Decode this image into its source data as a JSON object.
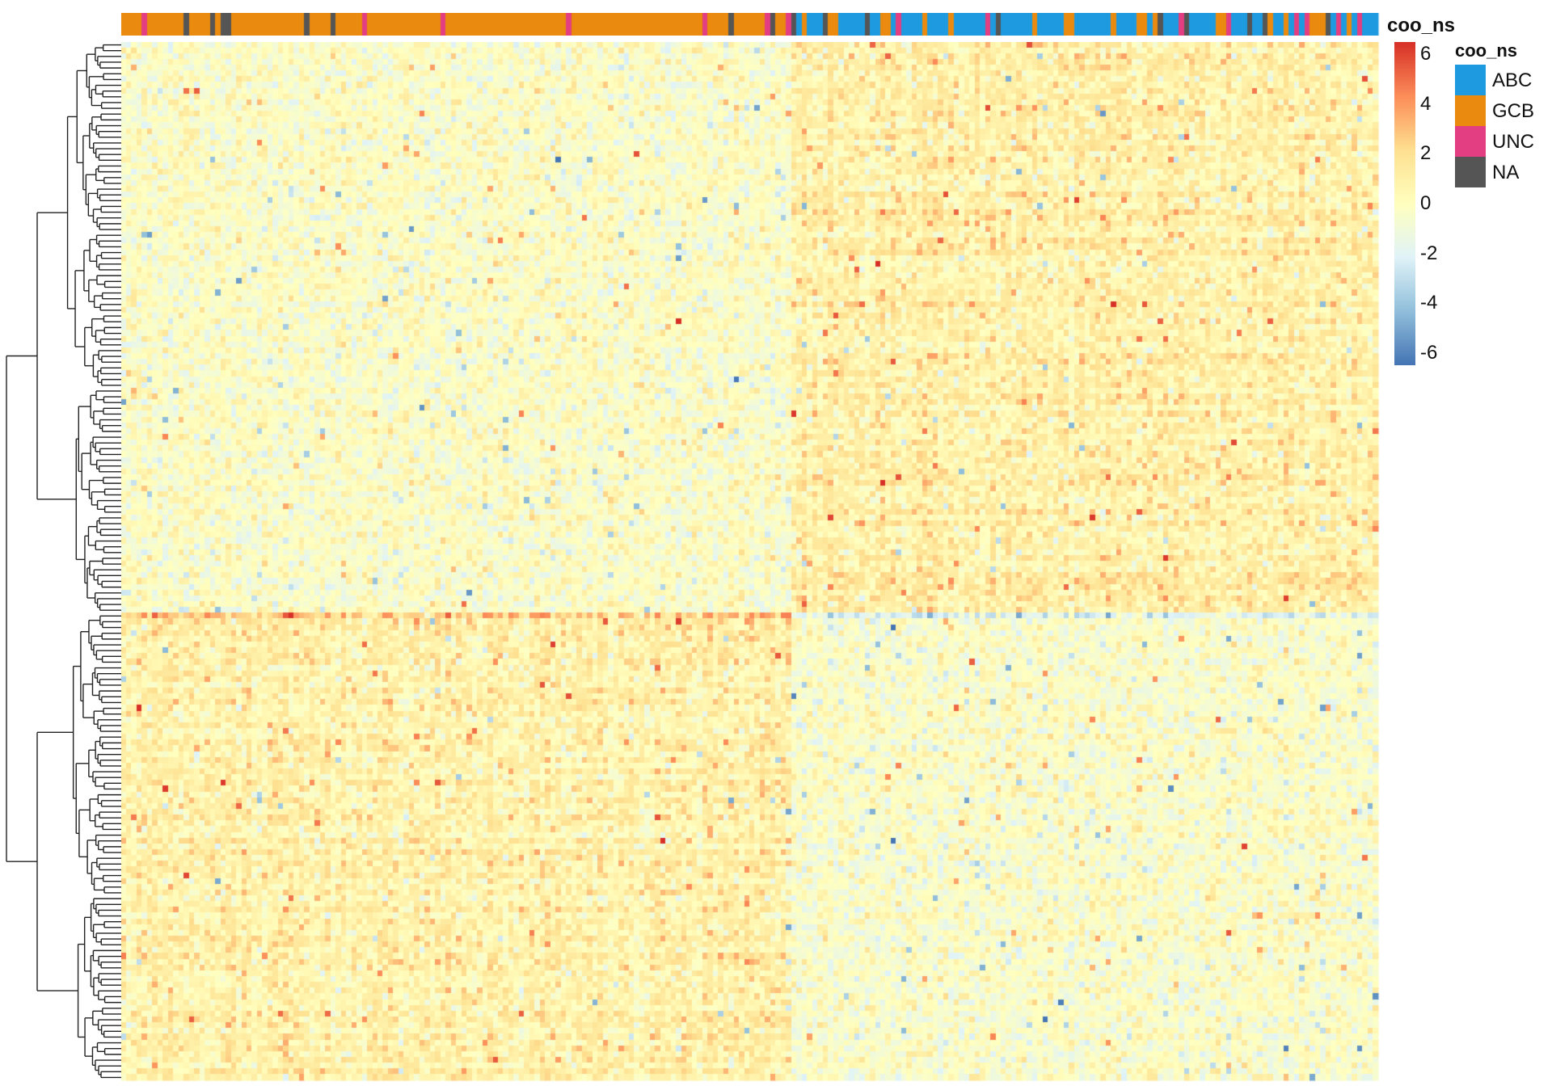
{
  "chart_data": {
    "type": "heatmap",
    "annotation": {
      "name": "coo_ns",
      "title": "coo_ns",
      "levels": [
        {
          "label": "ABC",
          "color": "#1E9BE0"
        },
        {
          "label": "GCB",
          "color": "#EA8A0E"
        },
        {
          "label": "UNC",
          "color": "#E23E81"
        },
        {
          "label": "NA",
          "color": "#555555"
        }
      ]
    },
    "color_scale": {
      "min": -6.5,
      "max": 6.5,
      "ticks": [
        "6",
        "4",
        "2",
        "0",
        "-2",
        "-4",
        "-6"
      ],
      "tick_values": [
        6,
        4,
        2,
        0,
        -2,
        -4,
        -6
      ],
      "colors": [
        "#4575B4",
        "#91BFDB",
        "#E0F3F8",
        "#FFFFBF",
        "#FEE090",
        "#FC8D59",
        "#D73027"
      ]
    },
    "row_dendrogram": true,
    "column_groups": [
      {
        "annotation": "GCB",
        "pattern": "higher expression in lower gene cluster"
      },
      {
        "annotation": "ABC",
        "pattern": "higher expression in upper gene cluster"
      }
    ],
    "n_rows": 180,
    "n_cols": 240
  }
}
